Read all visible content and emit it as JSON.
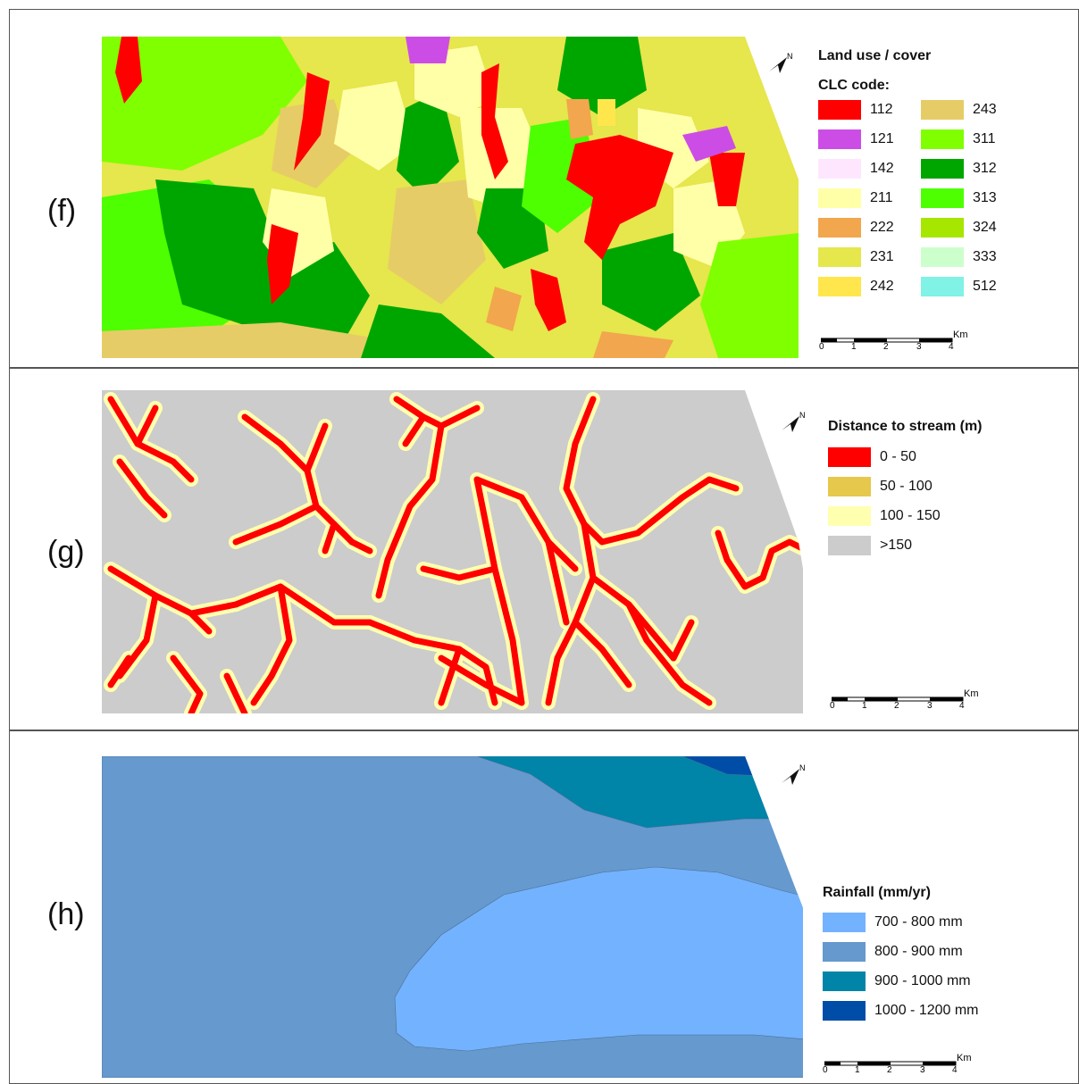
{
  "panels": {
    "f": {
      "label": "(f)",
      "legend_title": "Land use / cover",
      "legend_subtitle": "CLC code:",
      "classes": [
        {
          "code": "112",
          "color": "#ff0000"
        },
        {
          "code": "121",
          "color": "#cc4de6"
        },
        {
          "code": "142",
          "color": "#ffe6ff"
        },
        {
          "code": "211",
          "color": "#ffffa8"
        },
        {
          "code": "222",
          "color": "#f2a64d"
        },
        {
          "code": "231",
          "color": "#e6e64d"
        },
        {
          "code": "242",
          "color": "#ffe64d"
        },
        {
          "code": "243",
          "color": "#e6cc66"
        },
        {
          "code": "311",
          "color": "#80ff00"
        },
        {
          "code": "312",
          "color": "#00a600"
        },
        {
          "code": "313",
          "color": "#4dff00"
        },
        {
          "code": "324",
          "color": "#a6e600"
        },
        {
          "code": "333",
          "color": "#ccffcc"
        },
        {
          "code": "512",
          "color": "#80f2e6"
        }
      ]
    },
    "g": {
      "label": "(g)",
      "legend_title": "Distance to stream (m)",
      "classes": [
        {
          "range": "0 - 50",
          "color": "#ff0000"
        },
        {
          "range": "50 - 100",
          "color": "#e6c84d"
        },
        {
          "range": "100 - 150",
          "color": "#ffffb0"
        },
        {
          "range": ">150",
          "color": "#cccccc"
        }
      ]
    },
    "h": {
      "label": "(h)",
      "legend_title": "Rainfall (mm/yr)",
      "classes": [
        {
          "range": "700 - 800 mm",
          "color": "#73b2ff"
        },
        {
          "range": "800 - 900 mm",
          "color": "#6699cd"
        },
        {
          "range": "900 - 1000 mm",
          "color": "#0084a8"
        },
        {
          "range": "1000 - 1200 mm",
          "color": "#004da8"
        }
      ]
    }
  },
  "scalebar": {
    "ticks": [
      "0",
      "1",
      "2",
      "3",
      "4"
    ],
    "unit": "Km"
  },
  "north_label": "N"
}
